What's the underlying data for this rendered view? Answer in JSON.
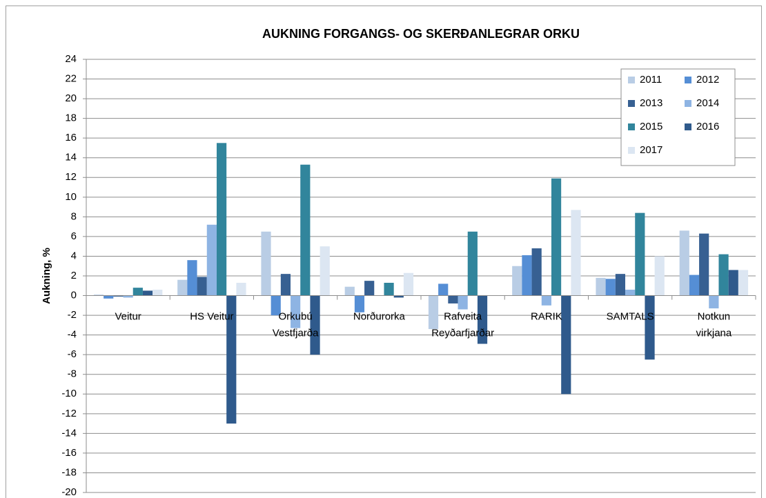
{
  "chart_data": {
    "type": "bar",
    "title": "AUKNING FORGANGS- OG SKERÐANLEGRAR ORKU",
    "y_label": "Aukning, %",
    "categories": [
      [
        "Veitur"
      ],
      [
        "HS Veitur"
      ],
      [
        "Orkubú",
        "Vestfjarða"
      ],
      [
        "Norðurorka"
      ],
      [
        "Rafveita",
        "Reyðarfjarðar"
      ],
      [
        "RARIK"
      ],
      [
        "SAMTALS"
      ],
      [
        "Notkun",
        "virkjana"
      ]
    ],
    "series": [
      {
        "name": "2011",
        "color": "#b9cde5",
        "values": [
          0.1,
          1.6,
          6.5,
          0.9,
          -3.4,
          3.0,
          1.8,
          6.6
        ]
      },
      {
        "name": "2012",
        "color": "#558ed5",
        "values": [
          -0.3,
          3.6,
          -2.0,
          -1.7,
          1.2,
          4.1,
          1.7,
          2.1
        ]
      },
      {
        "name": "2013",
        "color": "#376092",
        "values": [
          -0.1,
          1.9,
          2.2,
          1.5,
          -0.8,
          4.8,
          2.2,
          6.3
        ]
      },
      {
        "name": "2014",
        "color": "#8eb4e3",
        "values": [
          -0.2,
          7.2,
          -3.3,
          0,
          -1.4,
          -1.0,
          0.6,
          -1.3
        ]
      },
      {
        "name": "2015",
        "color": "#31859c",
        "values": [
          0.8,
          15.5,
          13.3,
          1.3,
          6.5,
          11.9,
          8.4,
          4.2
        ]
      },
      {
        "name": "2016",
        "color": "#2f5a8c",
        "values": [
          0.5,
          -13.0,
          -6.0,
          -0.2,
          -4.9,
          -10.0,
          -6.5,
          2.6
        ]
      },
      {
        "name": "2017",
        "color": "#dce6f2",
        "values": [
          0.6,
          1.3,
          5.0,
          2.3,
          0,
          8.7,
          4.0,
          2.6
        ]
      }
    ],
    "ylim": [
      -20,
      24
    ],
    "yticks": [
      -20,
      -18,
      -16,
      -14,
      -12,
      -10,
      -8,
      -6,
      -4,
      -2,
      0,
      2,
      4,
      6,
      8,
      10,
      12,
      14,
      16,
      18,
      20,
      22,
      24
    ],
    "grid": true,
    "legend": "upper right"
  }
}
